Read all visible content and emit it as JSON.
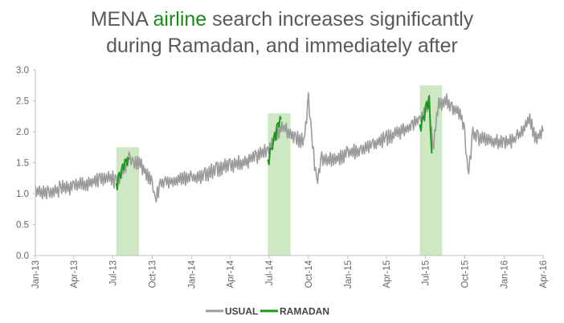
{
  "title": {
    "part1": "MENA ",
    "highlight": "airline",
    "part2": " search increases significantly",
    "line2": "during Ramadan, and immediately after"
  },
  "colors": {
    "usual": "#9b9b9b",
    "ramadan": "#1a9a1a",
    "ramadan_band": "#cfe8c4",
    "title_text": "#595959",
    "title_highlight": "#1a8a1a",
    "axis": "#bfbfbf"
  },
  "chart_data": {
    "type": "line",
    "x_unit": "month",
    "x_start": "2013-01-01",
    "x_end": "2016-04-01",
    "ylim": [
      0,
      3.0
    ],
    "yticks": [
      "0.0",
      "0.5",
      "1.0",
      "1.5",
      "2.0",
      "2.5",
      "3.0"
    ],
    "xticks": [
      {
        "label": "Jan-13",
        "date": "2013-01-01"
      },
      {
        "label": "Apr-13",
        "date": "2013-04-01"
      },
      {
        "label": "Jul-13",
        "date": "2013-07-01"
      },
      {
        "label": "Oct-13",
        "date": "2013-10-01"
      },
      {
        "label": "Jan-14",
        "date": "2014-01-01"
      },
      {
        "label": "Apr-14",
        "date": "2014-04-01"
      },
      {
        "label": "Jul-14",
        "date": "2014-07-01"
      },
      {
        "label": "Oct-14",
        "date": "2014-10-01"
      },
      {
        "label": "Jan-15",
        "date": "2015-01-01"
      },
      {
        "label": "Apr-15",
        "date": "2015-04-01"
      },
      {
        "label": "Jul-15",
        "date": "2015-07-01"
      },
      {
        "label": "Oct-15",
        "date": "2015-10-01"
      },
      {
        "label": "Jan-16",
        "date": "2016-01-01"
      },
      {
        "label": "Apr-16",
        "date": "2016-04-01"
      }
    ],
    "grid": false,
    "legend_position": "bottom",
    "ramadan_periods": [
      {
        "start": "2013-07-09",
        "end": "2013-08-31"
      },
      {
        "start": "2014-06-28",
        "end": "2014-08-20"
      },
      {
        "start": "2015-06-18",
        "end": "2015-08-09"
      }
    ],
    "series": [
      {
        "name": "USUAL",
        "color": "#9b9b9b",
        "points": [
          [
            "2013-01-01",
            1.05
          ],
          [
            "2013-02-01",
            1.02
          ],
          [
            "2013-03-01",
            1.08
          ],
          [
            "2013-04-01",
            1.12
          ],
          [
            "2013-05-01",
            1.15
          ],
          [
            "2013-06-01",
            1.25
          ],
          [
            "2013-07-01",
            1.25
          ],
          [
            "2013-07-09",
            1.15
          ],
          [
            "2013-08-10",
            1.58
          ],
          [
            "2013-08-18",
            1.45
          ],
          [
            "2013-09-01",
            1.5
          ],
          [
            "2013-09-15",
            1.35
          ],
          [
            "2013-10-01",
            1.15
          ],
          [
            "2013-10-08",
            0.9
          ],
          [
            "2013-10-20",
            1.15
          ],
          [
            "2013-11-01",
            1.2
          ],
          [
            "2013-12-01",
            1.22
          ],
          [
            "2014-01-01",
            1.25
          ],
          [
            "2014-02-01",
            1.3
          ],
          [
            "2014-03-01",
            1.4
          ],
          [
            "2014-04-01",
            1.45
          ],
          [
            "2014-05-01",
            1.5
          ],
          [
            "2014-06-01",
            1.6
          ],
          [
            "2014-06-28",
            1.7
          ],
          [
            "2014-07-31",
            2.1
          ],
          [
            "2014-08-15",
            2.0
          ],
          [
            "2014-09-01",
            1.9
          ],
          [
            "2014-09-20",
            1.85
          ],
          [
            "2014-10-01",
            2.5
          ],
          [
            "2014-10-08",
            1.95
          ],
          [
            "2014-10-20",
            1.15
          ],
          [
            "2014-11-01",
            1.55
          ],
          [
            "2014-12-01",
            1.55
          ],
          [
            "2015-01-01",
            1.65
          ],
          [
            "2015-02-01",
            1.7
          ],
          [
            "2015-03-01",
            1.8
          ],
          [
            "2015-04-01",
            1.9
          ],
          [
            "2015-05-01",
            2.0
          ],
          [
            "2015-06-01",
            2.1
          ],
          [
            "2015-06-18",
            2.2
          ],
          [
            "2015-07-10",
            2.5
          ],
          [
            "2015-07-18",
            1.7
          ],
          [
            "2015-08-01",
            2.45
          ],
          [
            "2015-08-20",
            2.5
          ],
          [
            "2015-09-01",
            2.4
          ],
          [
            "2015-09-20",
            2.3
          ],
          [
            "2015-10-01",
            2.0
          ],
          [
            "2015-10-08",
            1.3
          ],
          [
            "2015-10-20",
            1.95
          ],
          [
            "2015-11-01",
            1.9
          ],
          [
            "2015-12-01",
            1.85
          ],
          [
            "2016-01-01",
            1.8
          ],
          [
            "2016-02-01",
            1.9
          ],
          [
            "2016-03-01",
            2.2
          ],
          [
            "2016-03-15",
            1.9
          ],
          [
            "2016-04-01",
            2.0
          ]
        ]
      },
      {
        "name": "RAMADAN",
        "color": "#1a9a1a",
        "segments": [
          [
            [
              "2013-07-09",
              1.1
            ],
            [
              "2013-07-16",
              1.25
            ],
            [
              "2013-07-24",
              1.4
            ],
            [
              "2013-08-01",
              1.5
            ],
            [
              "2013-08-08",
              1.55
            ]
          ],
          [
            [
              "2014-06-28",
              1.5
            ],
            [
              "2014-07-06",
              1.7
            ],
            [
              "2014-07-14",
              1.9
            ],
            [
              "2014-07-22",
              2.1
            ],
            [
              "2014-07-29",
              2.2
            ]
          ],
          [
            [
              "2015-06-18",
              2.05
            ],
            [
              "2015-06-26",
              2.2
            ],
            [
              "2015-07-04",
              2.4
            ],
            [
              "2015-07-10",
              2.5
            ],
            [
              "2015-07-16",
              1.65
            ]
          ]
        ]
      }
    ]
  }
}
